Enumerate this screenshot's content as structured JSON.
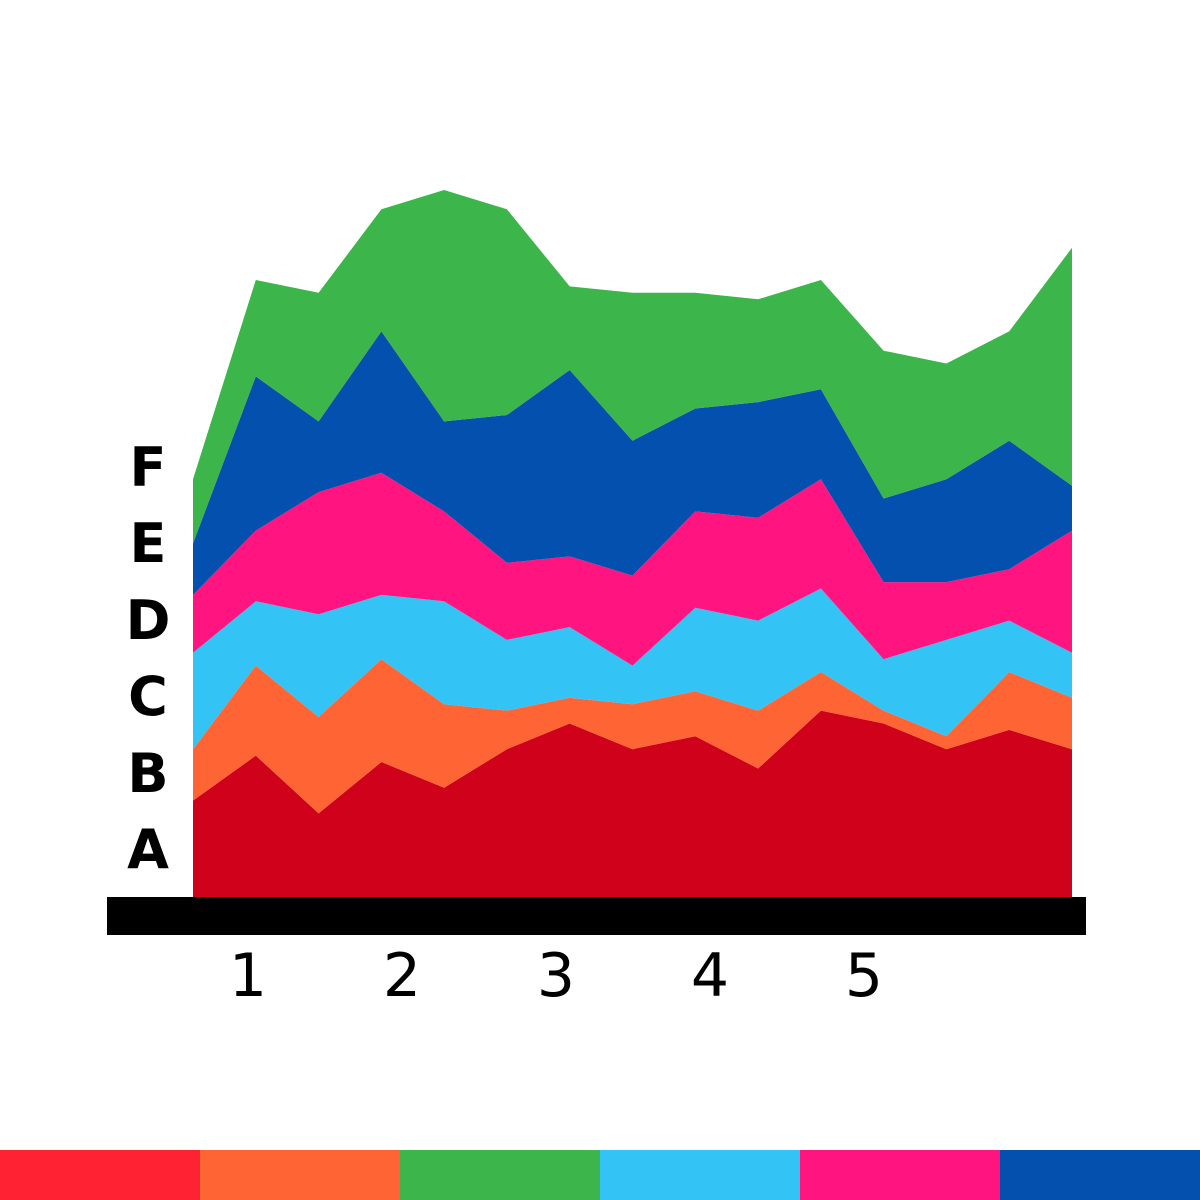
{
  "chart_data": {
    "type": "area",
    "stacked": true,
    "title": "",
    "xlabel": "",
    "ylabel": "",
    "xticks": [
      "1",
      "2",
      "3",
      "4",
      "5"
    ],
    "yticks": [
      "A",
      "B",
      "C",
      "D",
      "E",
      "F"
    ],
    "grid": false,
    "legend": "none",
    "series": [
      {
        "color": "#D0021B",
        "values": [
          1.5,
          2.2,
          1.3,
          2.1,
          1.7,
          2.3,
          2.7,
          2.3,
          2.5,
          2.0,
          2.9,
          2.7,
          2.3,
          2.6,
          2.3
        ]
      },
      {
        "color": "#FF6435",
        "values": [
          0.8,
          1.4,
          1.5,
          1.6,
          1.3,
          0.6,
          0.4,
          0.7,
          0.7,
          0.9,
          0.6,
          0.2,
          0.2,
          0.9,
          0.8
        ]
      },
      {
        "color": "#33C3F4",
        "values": [
          1.5,
          1.0,
          1.6,
          1.0,
          1.6,
          1.1,
          1.1,
          0.6,
          1.3,
          1.4,
          1.3,
          0.8,
          1.5,
          0.8,
          0.7
        ]
      },
      {
        "color": "#FF1480",
        "values": [
          0.9,
          1.1,
          1.9,
          1.9,
          1.4,
          1.2,
          1.1,
          1.4,
          1.5,
          1.6,
          1.7,
          1.2,
          0.9,
          0.8,
          1.9
        ]
      },
      {
        "color": "#0450AE",
        "values": [
          0.8,
          2.4,
          1.1,
          2.2,
          1.4,
          2.3,
          2.9,
          2.1,
          1.6,
          1.8,
          1.4,
          1.3,
          1.6,
          2.0,
          0.7
        ]
      },
      {
        "color": "#3CB54A",
        "values": [
          1.0,
          1.5,
          2.0,
          1.9,
          3.6,
          3.2,
          1.3,
          2.3,
          1.8,
          1.6,
          1.7,
          2.3,
          1.8,
          1.7,
          3.7
        ]
      }
    ]
  },
  "palette_bar": [
    "#FF2233",
    "#FF6435",
    "#3CB54A",
    "#33C3F4",
    "#FF1480",
    "#0450AE"
  ]
}
